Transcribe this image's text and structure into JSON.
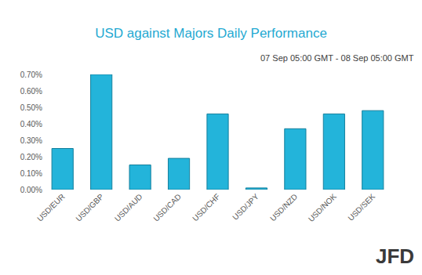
{
  "chart_data": {
    "type": "bar",
    "title": "USD against Majors Daily Performance",
    "subtitle": "07 Sep 05:00 GMT - 08 Sep 05:00 GMT",
    "categories": [
      "USD/EUR",
      "USD/GBP",
      "USD/AUD",
      "USD/CAD",
      "USD/CHF",
      "USD/JPY",
      "USD/NZD",
      "USD/NOK",
      "USD/SEK"
    ],
    "values": [
      0.25,
      0.7,
      0.15,
      0.19,
      0.46,
      0.01,
      0.37,
      0.46,
      0.48
    ],
    "color": "#23b4da",
    "ylim": [
      0,
      0.7
    ],
    "yticks": [
      {
        "value": 0,
        "label": "0.00%"
      },
      {
        "value": 0.1,
        "label": "0.10%"
      },
      {
        "value": 0.2,
        "label": "0.20%"
      },
      {
        "value": 0.3,
        "label": "0.30%"
      },
      {
        "value": 0.4,
        "label": "0.40%"
      },
      {
        "value": 0.5,
        "label": "0.50%"
      },
      {
        "value": 0.6,
        "label": "0.60%"
      },
      {
        "value": 0.7,
        "label": "0.70%"
      }
    ],
    "grid": false,
    "annotations": [
      {
        "text": "JFD"
      }
    ]
  }
}
